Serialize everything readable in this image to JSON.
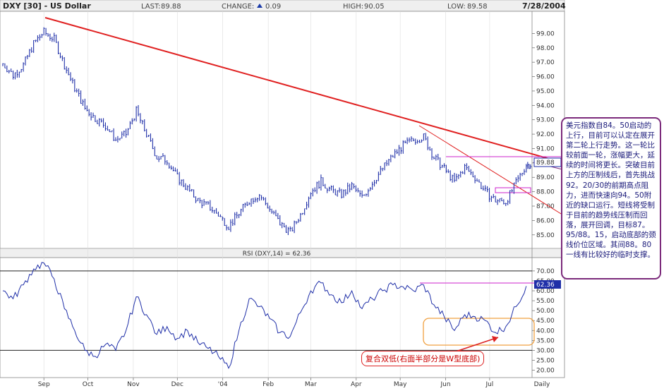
{
  "header": {
    "symbol": "DXY [30] - US Dollar",
    "last_label": "LAST:",
    "last_value": "89.88",
    "change_label": "CHANGE:",
    "change_value": "0.09",
    "high_label": "HIGH:",
    "high_value": "90.05",
    "low_label": "LOW:",
    "low_value": "89.58",
    "date": "7/28/2004"
  },
  "annotation": "美元指数自84。50启动的上行，目前可以认定在展开第二轮上行走势。这一轮比较前面一轮，涨幅更大，延续的时间将更长。突破目前上方的压制线后，首先挑战92。20/30的前期高点阻力，进而快速向94。50附近的缺口运行。短线将受制于目前的趋势线压制而回落，展开回调，目标87。95/88。15，启动底部的颈线价位区域。其间88。80一线有比较好的临时支撑。",
  "callout": "复合双低(右面半部分是W型底部)",
  "colors": {
    "price": "#1f2fa8",
    "trendline": "#e02020",
    "magenta": "#cc22cc",
    "orange_box": "#f0a040",
    "frame": "#7b2a7b"
  },
  "chart_data": [
    {
      "type": "bar",
      "subtype": "ohlc",
      "title": "DXY [30] - US Dollar",
      "x_ticks": [
        "Sep",
        "Oct",
        "Nov",
        "Dec",
        "'04",
        "Feb",
        "Mar",
        "Apr",
        "May",
        "Jun",
        "Jul",
        "Daily"
      ],
      "y_ticks": [
        85.0,
        86.0,
        87.0,
        88.0,
        89.0,
        90.0,
        91.0,
        92.0,
        93.0,
        94.0,
        95.0,
        96.0,
        97.0,
        98.0,
        99.0
      ],
      "ylim": [
        84.4,
        100.0
      ],
      "last_value_label": "89.88",
      "series": [
        {
          "name": "DXY",
          "points": [
            [
              "2003-08-04",
              96.9
            ],
            [
              "2003-08-11",
              96.1
            ],
            [
              "2003-08-18",
              96.8
            ],
            [
              "2003-08-25",
              98.3
            ],
            [
              "2003-09-01",
              99.1
            ],
            [
              "2003-09-08",
              98.6
            ],
            [
              "2003-09-15",
              96.8
            ],
            [
              "2003-09-22",
              95.2
            ],
            [
              "2003-09-29",
              93.8
            ],
            [
              "2003-10-06",
              93.1
            ],
            [
              "2003-10-13",
              92.6
            ],
            [
              "2003-10-20",
              91.6
            ],
            [
              "2003-10-27",
              92.0
            ],
            [
              "2003-11-03",
              93.6
            ],
            [
              "2003-11-10",
              92.0
            ],
            [
              "2003-11-17",
              90.4
            ],
            [
              "2003-11-24",
              90.2
            ],
            [
              "2003-12-01",
              89.0
            ],
            [
              "2003-12-08",
              88.2
            ],
            [
              "2003-12-15",
              87.4
            ],
            [
              "2003-12-22",
              87.0
            ],
            [
              "2003-12-29",
              86.4
            ],
            [
              "2004-01-05",
              85.6
            ],
            [
              "2004-01-12",
              86.5
            ],
            [
              "2004-01-19",
              87.4
            ],
            [
              "2004-01-26",
              87.8
            ],
            [
              "2004-02-02",
              86.8
            ],
            [
              "2004-02-09",
              85.8
            ],
            [
              "2004-02-16",
              85.2
            ],
            [
              "2004-02-23",
              86.4
            ],
            [
              "2004-03-01",
              88.0
            ],
            [
              "2004-03-08",
              88.7
            ],
            [
              "2004-03-15",
              88.1
            ],
            [
              "2004-03-22",
              87.8
            ],
            [
              "2004-03-29",
              88.4
            ],
            [
              "2004-04-05",
              87.6
            ],
            [
              "2004-04-12",
              88.6
            ],
            [
              "2004-04-19",
              89.6
            ],
            [
              "2004-04-26",
              90.5
            ],
            [
              "2004-05-03",
              91.2
            ],
            [
              "2004-05-10",
              91.6
            ],
            [
              "2004-05-17",
              91.8
            ],
            [
              "2004-05-24",
              90.4
            ],
            [
              "2004-05-31",
              89.6
            ],
            [
              "2004-06-07",
              88.7
            ],
            [
              "2004-06-14",
              89.7
            ],
            [
              "2004-06-21",
              89.0
            ],
            [
              "2004-06-28",
              88.0
            ],
            [
              "2004-07-05",
              87.4
            ],
            [
              "2004-07-12",
              87.3
            ],
            [
              "2004-07-19",
              88.6
            ],
            [
              "2004-07-26",
              89.88
            ]
          ]
        }
      ]
    },
    {
      "type": "line",
      "title": "RSI (DXY,14) = 62.36",
      "x_ticks": [
        "Sep",
        "Oct",
        "Nov",
        "Dec",
        "'04",
        "Feb",
        "Mar",
        "Apr",
        "May",
        "Jun",
        "Jul",
        "Daily"
      ],
      "y_ticks": [
        20.0,
        25.0,
        30.0,
        35.0,
        40.0,
        45.0,
        50.0,
        55.0,
        60.0,
        65.0,
        70.0
      ],
      "ylim": [
        17,
        76
      ],
      "reference_lines": [
        30,
        70
      ],
      "last_value_label": "62.36",
      "series": [
        {
          "name": "RSI",
          "points": [
            [
              "2003-08-04",
              60
            ],
            [
              "2003-08-11",
              56
            ],
            [
              "2003-08-18",
              63
            ],
            [
              "2003-08-25",
              71
            ],
            [
              "2003-09-01",
              74
            ],
            [
              "2003-09-08",
              66
            ],
            [
              "2003-09-15",
              51
            ],
            [
              "2003-09-22",
              40
            ],
            [
              "2003-09-29",
              30
            ],
            [
              "2003-10-06",
              27
            ],
            [
              "2003-10-13",
              33
            ],
            [
              "2003-10-20",
              30
            ],
            [
              "2003-10-27",
              40
            ],
            [
              "2003-11-03",
              57
            ],
            [
              "2003-11-10",
              48
            ],
            [
              "2003-11-17",
              38
            ],
            [
              "2003-11-24",
              42
            ],
            [
              "2003-12-01",
              36
            ],
            [
              "2003-12-08",
              40
            ],
            [
              "2003-12-15",
              34
            ],
            [
              "2003-12-22",
              31
            ],
            [
              "2003-12-29",
              27
            ],
            [
              "2004-01-05",
              21
            ],
            [
              "2004-01-12",
              40
            ],
            [
              "2004-01-19",
              56
            ],
            [
              "2004-01-26",
              52
            ],
            [
              "2004-02-02",
              46
            ],
            [
              "2004-02-09",
              39
            ],
            [
              "2004-02-16",
              37
            ],
            [
              "2004-02-23",
              49
            ],
            [
              "2004-03-01",
              60
            ],
            [
              "2004-03-08",
              64
            ],
            [
              "2004-03-15",
              58
            ],
            [
              "2004-03-22",
              54
            ],
            [
              "2004-03-29",
              60
            ],
            [
              "2004-04-05",
              51
            ],
            [
              "2004-04-12",
              56
            ],
            [
              "2004-04-19",
              60
            ],
            [
              "2004-04-26",
              63
            ],
            [
              "2004-05-03",
              62
            ],
            [
              "2004-05-10",
              60
            ],
            [
              "2004-05-17",
              63
            ],
            [
              "2004-05-24",
              53
            ],
            [
              "2004-05-31",
              47
            ],
            [
              "2004-06-07",
              40
            ],
            [
              "2004-06-14",
              48
            ],
            [
              "2004-06-21",
              47
            ],
            [
              "2004-06-28",
              45
            ],
            [
              "2004-07-05",
              39
            ],
            [
              "2004-07-12",
              42
            ],
            [
              "2004-07-19",
              52
            ],
            [
              "2004-07-26",
              62.36
            ]
          ]
        }
      ]
    }
  ]
}
